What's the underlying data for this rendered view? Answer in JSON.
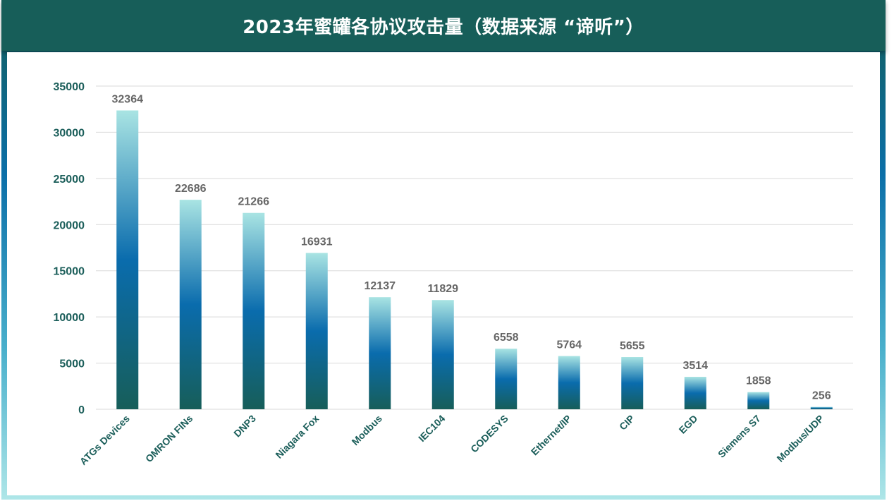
{
  "title": "2023年蜜罐各协议攻击量（数据来源 “谛听”）",
  "colors": {
    "frame_top": "#175e59",
    "axis_text": "#1b5e5a",
    "value_text": "#666666",
    "grid": "#d9d9d9",
    "bar_top": "#a9e4e3",
    "bar_mid": "#0a6cad",
    "bar_bottom": "#175e59"
  },
  "chart_data": {
    "type": "bar",
    "title": "2023年蜜罐各协议攻击量（数据来源 “谛听”）",
    "categories": [
      "ATGs Devices",
      "OMRON FINs",
      "DNP3",
      "Niagara Fox",
      "Modbus",
      "IEC104",
      "CODESYS",
      "Ethernet/IP",
      "CIP",
      "EGD",
      "Siemens S7",
      "Modbus/UDP"
    ],
    "values": [
      32364,
      22686,
      21266,
      16931,
      12137,
      11829,
      6558,
      5764,
      5655,
      3514,
      1858,
      256
    ],
    "value_labels": [
      "32364",
      "22686",
      "21266",
      "16931",
      "12137",
      "11829",
      "6558",
      "5764",
      "5655",
      "3514",
      "1858",
      "256"
    ],
    "yticks": [
      "0",
      "5000",
      "10000",
      "15000",
      "20000",
      "25000",
      "30000",
      "35000"
    ],
    "ylim": [
      0,
      35000
    ],
    "xlabel": "",
    "ylabel": "",
    "grid": true,
    "legend": "none"
  }
}
